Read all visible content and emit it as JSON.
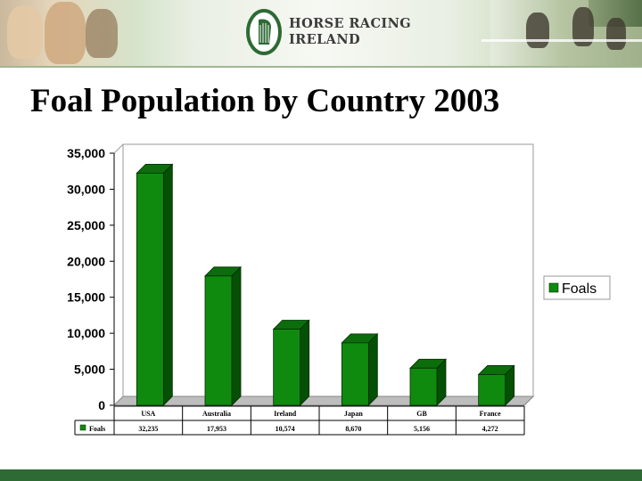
{
  "banner": {
    "logo_line1": "HORSE RACING",
    "logo_line2": "IRELAND",
    "logo_icon": "harp-icon",
    "accent_color": "#2d6a34"
  },
  "title": "Foal Population by Country 2003",
  "chart_data": {
    "type": "bar",
    "title": "Foal Population by Country 2003",
    "categories": [
      "USA",
      "Australia",
      "Ireland",
      "Japan",
      "GB",
      "France"
    ],
    "series": [
      {
        "name": "Foals",
        "values": [
          32235,
          17953,
          10574,
          8670,
          5156,
          4272
        ],
        "color": "#0f8a0f"
      }
    ],
    "value_labels": [
      "32,235",
      "17,953",
      "10,574",
      "8,670",
      "5,156",
      "4,272"
    ],
    "ylim": [
      0,
      35000
    ],
    "yticks": [
      0,
      5000,
      10000,
      15000,
      20000,
      25000,
      30000,
      35000
    ],
    "ytick_labels": [
      "0",
      "5,000",
      "10,000",
      "15,000",
      "20,000",
      "25,000",
      "30,000",
      "35,000"
    ],
    "grid": false,
    "three_d": true,
    "legend_position": "right",
    "data_table": true
  }
}
